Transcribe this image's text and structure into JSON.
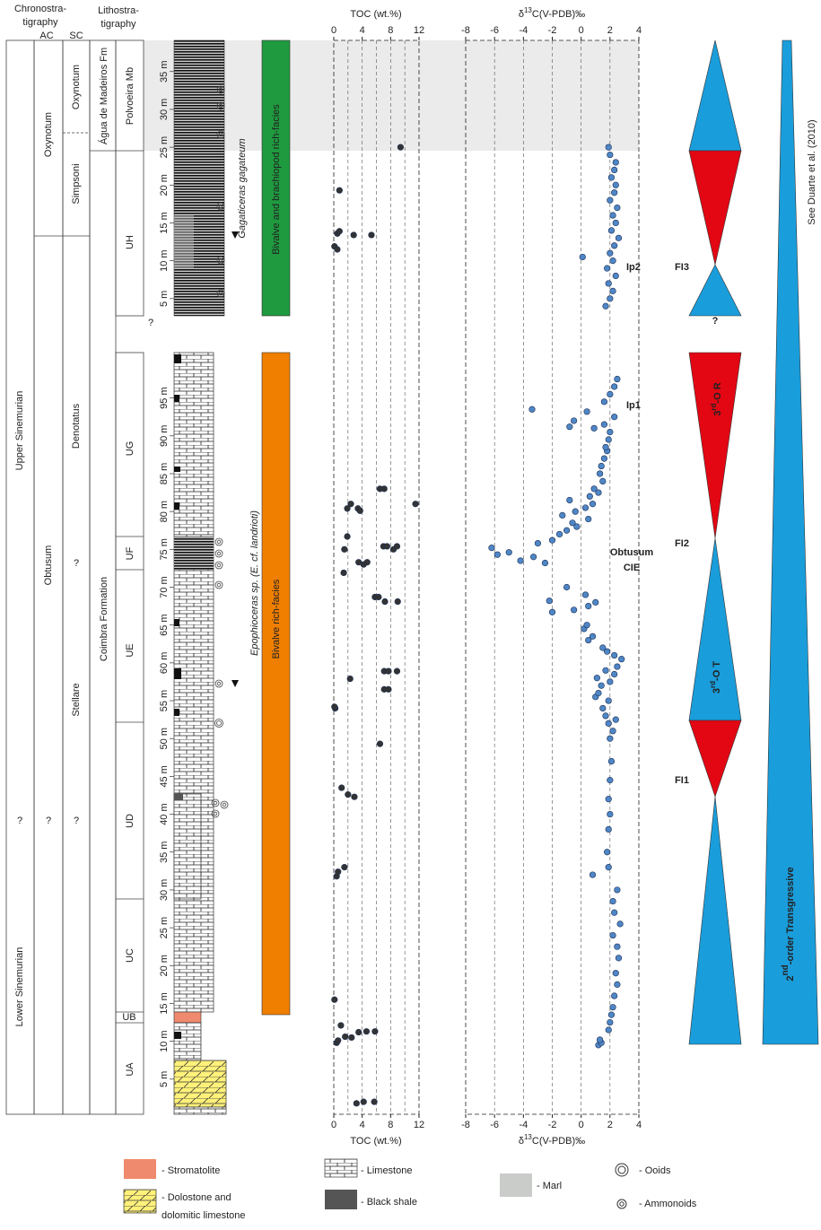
{
  "strat": {
    "chrono_title": [
      "Chronostra-",
      "tigraphy"
    ],
    "ac": "AC",
    "sc": "SC",
    "litho_title": [
      "Lithostra-",
      "tigraphy"
    ],
    "stages": [
      "Upper Sinemurian",
      "?",
      "Lower Sinemurian"
    ],
    "ac_zones": [
      "Oxynotum",
      "Obtusum",
      "?"
    ],
    "sc_zones": [
      "Oxynotum",
      "Simpsoni",
      "Denotatus",
      "?",
      "Stellare",
      "?"
    ],
    "formations": [
      "Água de Madeiros Fm",
      "Coimbra Formation"
    ],
    "units": [
      "Polvoeira Mb",
      "UH",
      "UG",
      "UF",
      "UE",
      "UD",
      "UC",
      "UB",
      "UA"
    ],
    "unknown": "?",
    "ammonites": [
      "Gagaticeras gagateum",
      "Epophioceras sp. (E. cf. landrioti)"
    ],
    "facies": [
      "Bivalve and brachiopod rich-facies",
      "Bivalve rich-facies"
    ]
  },
  "sections": [
    {
      "ylim": [
        0,
        101
      ],
      "yticks": [
        {
          "value": 5,
          "label": "5 m"
        },
        {
          "value": 10,
          "label": "10 m"
        },
        {
          "value": 15,
          "label": "15 m"
        },
        {
          "value": 20,
          "label": "20 m"
        },
        {
          "value": 25,
          "label": "25 m"
        },
        {
          "value": 30,
          "label": "30 m"
        },
        {
          "value": 35,
          "label": "35 m"
        },
        {
          "value": 40,
          "label": "40 m"
        },
        {
          "value": 45,
          "label": "45 m"
        },
        {
          "value": 50,
          "label": "50 m"
        },
        {
          "value": 55,
          "label": "55 m"
        },
        {
          "value": 60,
          "label": "60 m"
        },
        {
          "value": 65,
          "label": "65 m"
        },
        {
          "value": 70,
          "label": "70 m"
        },
        {
          "value": 75,
          "label": "75 m"
        },
        {
          "value": 80,
          "label": "80 m"
        },
        {
          "value": 85,
          "label": "85 m"
        },
        {
          "value": 90,
          "label": "90 m"
        },
        {
          "value": 95,
          "label": "95 m"
        }
      ]
    },
    {
      "ylim": [
        0,
        39
      ],
      "yticks": [
        {
          "value": 5,
          "label": "5 m"
        },
        {
          "value": 10,
          "label": "10 m"
        },
        {
          "value": 15,
          "label": "15 m"
        },
        {
          "value": 20,
          "label": "20 m"
        },
        {
          "value": 25,
          "label": "25 m"
        },
        {
          "value": 30,
          "label": "30 m"
        },
        {
          "value": 35,
          "label": "35 m"
        }
      ]
    }
  ],
  "chart_data": [
    {
      "type": "scatter",
      "title": "TOC (wt.%)",
      "xlim": [
        0,
        12
      ],
      "xticks": [
        0,
        4,
        8,
        12
      ],
      "grid": [
        2,
        4,
        6,
        8,
        10
      ],
      "series": [
        {
          "section": 0,
          "color": "#333333",
          "x": [
            3.2,
            4.2,
            5.7,
            0.4,
            0.6,
            2.5,
            1.6,
            3.5,
            1.0,
            4.6,
            5.8,
            0.1,
            0.4,
            0.6,
            1.5,
            2.9,
            2.0,
            1.1,
            6.5,
            0.2,
            0.1,
            7.1,
            7.7,
            2.3,
            7.1,
            7.7,
            8.9,
            9.0,
            7.2,
            5.8,
            6.3,
            1.4,
            3.5,
            4.2,
            4.7,
            1.5,
            7.0,
            7.5,
            8.4,
            8.9,
            1.9,
            1.9,
            2.4,
            3.4,
            3.7,
            11.5,
            6.5,
            7.1
          ],
          "y": [
            1.8,
            2.0,
            2.0,
            9.8,
            10.1,
            10.5,
            10.6,
            11.2,
            12.1,
            11.3,
            11.3,
            15.5,
            31.8,
            32.4,
            33.0,
            42.3,
            42.6,
            43.5,
            49.3,
            54.0,
            54.2,
            56.5,
            56.5,
            57.9,
            58.9,
            58.9,
            58.9,
            68.1,
            68.1,
            68.7,
            68.7,
            71.9,
            73.3,
            73.0,
            73.3,
            75.0,
            75.4,
            75.4,
            75.0,
            75.4,
            76.7,
            80.4,
            81.0,
            80.4,
            80.1,
            81.0,
            83.0,
            83.0
          ]
        },
        {
          "section": 1,
          "color": "#333333",
          "x": [
            9.4,
            0.8,
            0.5,
            0.8,
            2.8,
            5.3,
            0.1,
            0.5
          ],
          "y": [
            25.0,
            19.3,
            13.6,
            13.9,
            13.4,
            13.4,
            11.9,
            11.5
          ]
        }
      ]
    },
    {
      "type": "scatter",
      "title": {
        "pre": "δ",
        "sup": "13",
        "post": "C(V-PDB)‰"
      },
      "xlim": [
        -8,
        4
      ],
      "xticks": [
        -8,
        -6,
        -4,
        -2,
        0,
        2,
        4
      ],
      "grid": [
        -6,
        -4,
        -2,
        0,
        2
      ],
      "annotations": [
        "Ip2",
        "Ip1",
        "Obtusum",
        "CIE"
      ],
      "series": [
        {
          "section": 0,
          "color": "#4f86c6",
          "x": [
            1.2,
            1.4,
            1.3,
            1.9,
            2.0,
            2.1,
            2.2,
            2.3,
            2.5,
            2.4,
            2.6,
            2.5,
            2.2,
            2.7,
            2.3,
            2.2,
            2.5,
            0.8,
            1.9,
            1.8,
            1.9,
            2.0,
            1.9,
            2.0,
            2.1,
            2.0,
            2.2,
            1.9,
            2.4,
            1.7,
            1.5,
            1.9,
            1.0,
            1.2,
            1.4,
            2.0,
            1.1,
            2.3,
            1.7,
            2.5,
            2.8,
            2.3,
            1.8,
            1.5,
            0.5,
            0.8,
            0.2,
            0.4,
            -2.2,
            -2.0,
            -0.5,
            0.5,
            1.0,
            0.3,
            -1.0,
            -2.5,
            -4.2,
            -3.3,
            -5.0,
            -6.2,
            -5.8,
            -3.0,
            -2.0,
            -1.5,
            -1.0,
            -0.3,
            -0.6,
            0.5,
            -1.3,
            -0.4,
            0.3,
            0.8,
            -0.8,
            0.6,
            1.2,
            0.9,
            1.5,
            1.3,
            1.4,
            1.6,
            1.8,
            1.7,
            1.9,
            2.0,
            0.9,
            1.6,
            -0.8,
            -0.5,
            2.3,
            -3.4,
            0.4,
            1.6,
            2.0,
            2.3,
            2.5
          ],
          "y": [
            9.5,
            9.8,
            10.2,
            11.5,
            12.5,
            13.5,
            14.5,
            16,
            17.5,
            19,
            21,
            22.5,
            24,
            25.5,
            27,
            28.5,
            30,
            32,
            33,
            35,
            38,
            40,
            42,
            44.5,
            47,
            50,
            51,
            52,
            52.5,
            53,
            54,
            55,
            55.5,
            56,
            57,
            57.5,
            58,
            58.5,
            59,
            59.5,
            60.5,
            61,
            61.5,
            62,
            63,
            63.5,
            64.5,
            65,
            68.2,
            66.7,
            67,
            67.5,
            68,
            69,
            70,
            73.2,
            73.5,
            74.0,
            74.6,
            75.2,
            74.3,
            75.8,
            76.2,
            77,
            77.5,
            78,
            78.5,
            79,
            79.5,
            80,
            80.5,
            81,
            81.5,
            82,
            82.5,
            83,
            84,
            85,
            86,
            87,
            88,
            88.5,
            89.5,
            90.5,
            91,
            91.5,
            91.2,
            92,
            92.5,
            93.5,
            93.2,
            94.5,
            95.5,
            96.5,
            97.5
          ]
        },
        {
          "section": 1,
          "color": "#4f86c6",
          "x": [
            1.9,
            2.0,
            2.4,
            2.3,
            2.1,
            2.4,
            2.3,
            2.0,
            2.5,
            2.2,
            2.4,
            2.1,
            2.6,
            2.3,
            2.0,
            0.1,
            2.2,
            1.8,
            2.4,
            1.9,
            2.2,
            2.0,
            1.7
          ],
          "y": [
            25,
            24,
            23,
            22,
            21,
            20,
            19,
            18,
            17,
            16,
            15,
            14,
            13,
            12,
            11,
            10.5,
            10,
            9,
            8,
            7,
            6,
            5,
            4
          ]
        }
      ]
    }
  ],
  "sequences": {
    "labels": [
      "FI3",
      "FI2",
      "FI1"
    ],
    "third_order": [
      {
        "num": "3",
        "sup": "rd",
        "rest": "-O R"
      },
      {
        "num": "3",
        "sup": "rd",
        "rest": "-O T"
      }
    ],
    "question": "?",
    "second_order": {
      "num": "2",
      "sup": "nd",
      "rest": "-order Transgressive"
    },
    "reference": "See Duarte et al. (2010)"
  },
  "legend": {
    "stromatolite": "- Stromatolite",
    "dolostone": [
      "- Dolostone and",
      "dolomitic limestone"
    ],
    "limestone": "- Limestone",
    "black_shale": "-  Black shale",
    "marl": "- Marl",
    "ooids": "- Ooids",
    "ammonoids": "- Ammonoids"
  }
}
